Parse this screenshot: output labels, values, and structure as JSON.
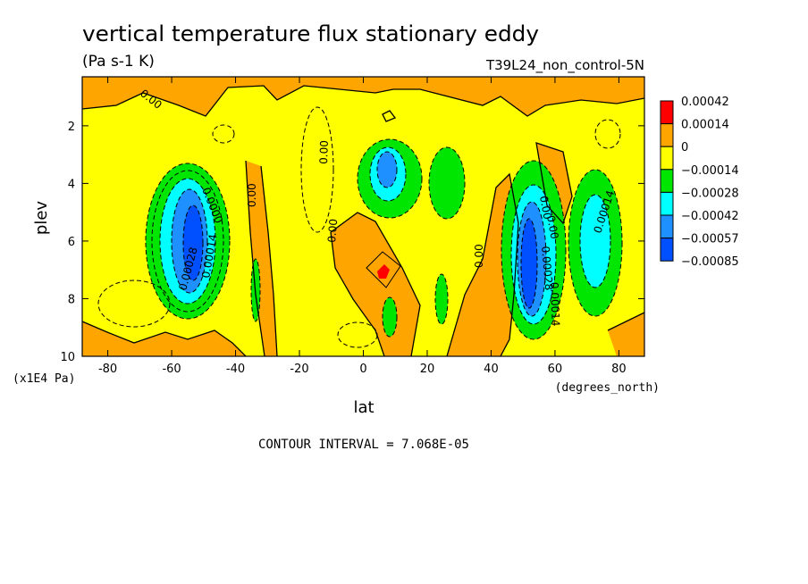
{
  "chart_data": {
    "type": "heatmap",
    "title": "vertical temperature flux stationary eddy",
    "units": "(Pa s-1 K)",
    "run_label": "T39L24_non_control-5N",
    "xlabel": "lat",
    "x_units": "(degrees_north)",
    "ylabel": "plev",
    "y_units": "(x1E4 Pa)",
    "x_range": [
      -88,
      88
    ],
    "y_range": [
      10,
      0.3
    ],
    "x_ticks": [
      "-80",
      "-60",
      "-40",
      "-20",
      "0",
      "20",
      "40",
      "60",
      "80"
    ],
    "x_tick_values": [
      -80,
      -60,
      -40,
      -20,
      0,
      20,
      40,
      60,
      80
    ],
    "y_ticks": [
      "2",
      "4",
      "6",
      "8",
      "10"
    ],
    "y_tick_values": [
      2,
      4,
      6,
      8,
      10
    ],
    "footer": "CONTOUR INTERVAL = 7.068E-05",
    "colorbar": {
      "labels": [
        "0.00042",
        "0.00014",
        "0",
        "−0.00014",
        "−0.00028",
        "−0.00042",
        "−0.00057",
        "−0.00085"
      ],
      "colors": [
        "#ff0000",
        "#ffa500",
        "#ffff00",
        "#00e600",
        "#00ffff",
        "#1e90ff",
        "#0050ff"
      ]
    },
    "contour_labels": [
      "0.00",
      "0.00",
      "0.00",
      "0.00",
      "0.00",
      "0.0000",
      "0.00028",
      "0.00014",
      "0.00",
      "0.00",
      "0.00014",
      "0.00028",
      "0.00014"
    ],
    "field_features": [
      {
        "lat": -55,
        "plev": 6.0,
        "value": -0.00085,
        "description": "strong negative cell"
      },
      {
        "lat": 52,
        "plev": 6.0,
        "value": -0.00085,
        "description": "strong negative cell"
      },
      {
        "lat": 8,
        "plev": 3.5,
        "value": -0.00057,
        "description": "negative cell"
      },
      {
        "lat": 72,
        "plev": 6.0,
        "value": -0.00042,
        "description": "negative cell"
      },
      {
        "lat": 6,
        "plev": 7.0,
        "value": 0.00042,
        "description": "positive maximum"
      }
    ]
  }
}
